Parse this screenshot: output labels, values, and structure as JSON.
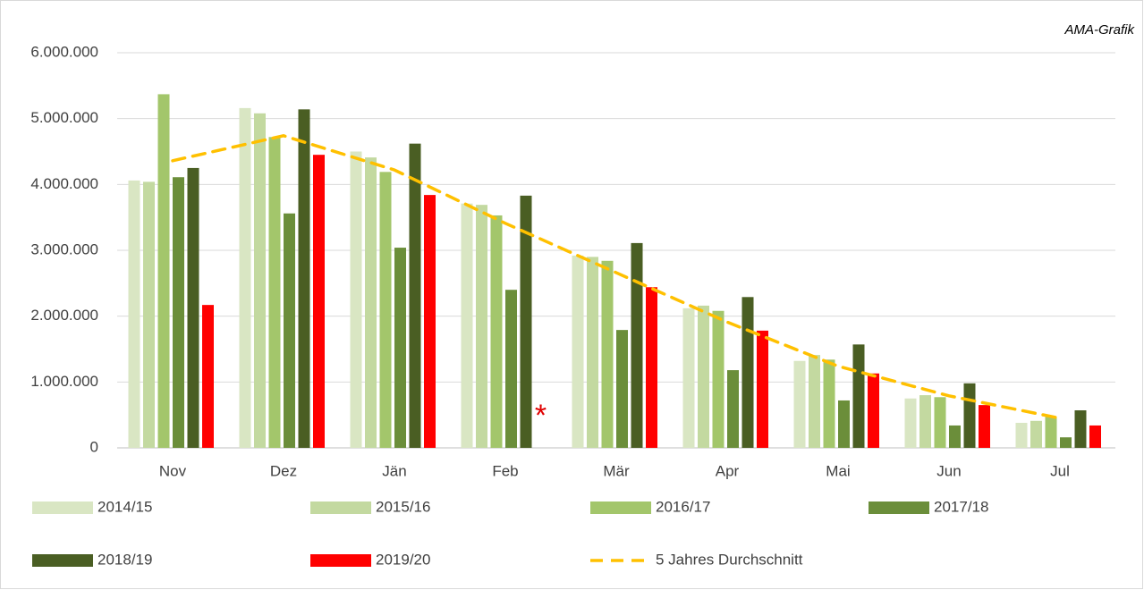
{
  "chart_data": {
    "type": "bar",
    "source_note": "AMA-Grafik",
    "annotation": "*",
    "categories": [
      "Nov",
      "Dez",
      "Jän",
      "Feb",
      "Mär",
      "Apr",
      "Mai",
      "Jun",
      "Jul"
    ],
    "series": [
      {
        "name": "2014/15",
        "color": "#d9e6c3",
        "values": [
          4060000,
          5160000,
          4500000,
          3710000,
          2920000,
          2120000,
          1320000,
          750000,
          380000
        ]
      },
      {
        "name": "2015/16",
        "color": "#c3d9a0",
        "values": [
          4040000,
          5080000,
          4410000,
          3690000,
          2900000,
          2160000,
          1410000,
          800000,
          410000
        ]
      },
      {
        "name": "2016/17",
        "color": "#a3c66b",
        "values": [
          5370000,
          4720000,
          4190000,
          3530000,
          2840000,
          2080000,
          1340000,
          770000,
          470000
        ]
      },
      {
        "name": "2017/18",
        "color": "#6b8e3a",
        "values": [
          4110000,
          3560000,
          3040000,
          2400000,
          1790000,
          1180000,
          720000,
          340000,
          160000
        ]
      },
      {
        "name": "2018/19",
        "color": "#4a5e23",
        "values": [
          4250000,
          5140000,
          4620000,
          3830000,
          3110000,
          2290000,
          1570000,
          980000,
          570000
        ]
      },
      {
        "name": "2019/20",
        "color": "#ff0000",
        "values": [
          2170000,
          4450000,
          3840000,
          null,
          2440000,
          1780000,
          1130000,
          650000,
          340000
        ]
      }
    ],
    "average": {
      "name": "5 Jahres Durchschnitt",
      "color": "#ffc000",
      "values": [
        4360000,
        4740000,
        4220000,
        3410000,
        2660000,
        1910000,
        1240000,
        790000,
        450000
      ]
    },
    "ylim": [
      0,
      6000000
    ],
    "yticks": [
      0,
      {
        "value": 1000000,
        "label": "1.000.000"
      },
      {
        "value": 2000000,
        "label": "2.000.000"
      },
      {
        "value": 3000000,
        "label": "3.000.000"
      },
      {
        "value": 4000000,
        "label": "4.000.000"
      },
      {
        "value": 5000000,
        "label": "5.000.000"
      },
      {
        "value": 6000000,
        "label": "6.000.000"
      }
    ],
    "grid": true
  }
}
